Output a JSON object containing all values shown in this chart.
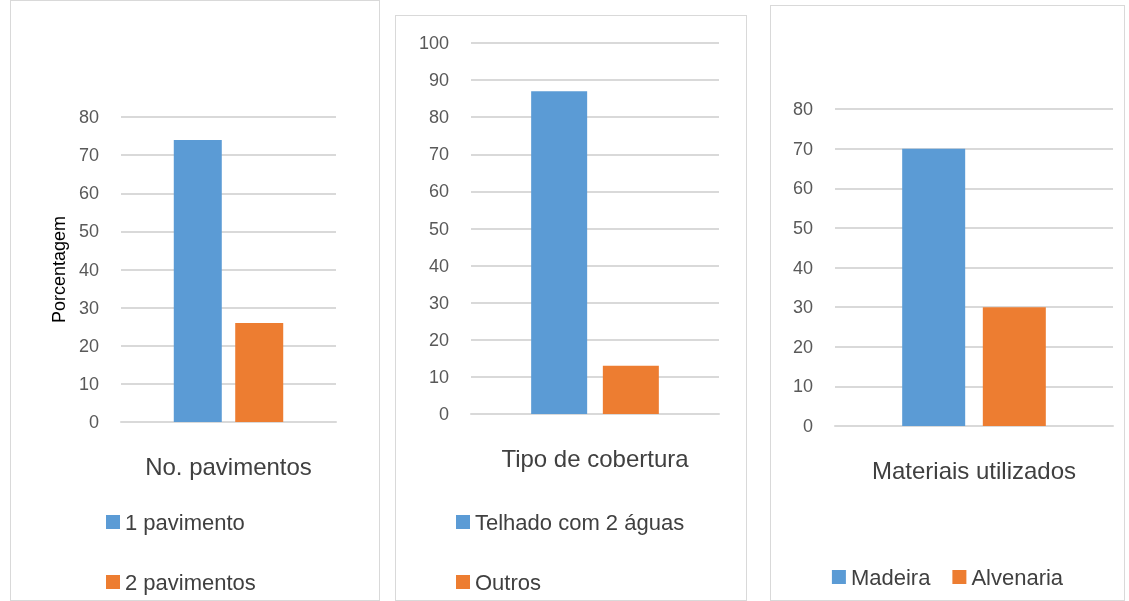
{
  "chart_data": [
    {
      "type": "bar",
      "ylabel": "Porcentagem",
      "categories": [
        "No. pavimentos"
      ],
      "ylim": [
        0,
        80
      ],
      "yticks": [
        0,
        10,
        20,
        30,
        40,
        50,
        60,
        70,
        80
      ],
      "grid": "y",
      "legend": "bottom",
      "series": [
        {
          "name": "1 pavimento",
          "color": "#5b9bd5",
          "values": [
            74
          ]
        },
        {
          "name": "2 pavimentos",
          "color": "#ed7d31",
          "values": [
            26
          ]
        }
      ]
    },
    {
      "type": "bar",
      "categories": [
        "Tipo de cobertura"
      ],
      "ylim": [
        0,
        100
      ],
      "yticks": [
        0,
        10,
        20,
        30,
        40,
        50,
        60,
        70,
        80,
        90,
        100
      ],
      "grid": "y",
      "legend": "bottom",
      "series": [
        {
          "name": "Telhado com 2 águas",
          "color": "#5b9bd5",
          "values": [
            87
          ]
        },
        {
          "name": "Outros",
          "color": "#ed7d31",
          "values": [
            13
          ]
        }
      ]
    },
    {
      "type": "bar",
      "categories": [
        "Materiais utilizados"
      ],
      "ylim": [
        0,
        80
      ],
      "yticks": [
        0,
        10,
        20,
        30,
        40,
        50,
        60,
        70,
        80
      ],
      "grid": "y",
      "legend": "bottom",
      "series": [
        {
          "name": "Madeira",
          "color": "#5b9bd5",
          "values": [
            70
          ]
        },
        {
          "name": "Alvenaria",
          "color": "#ed7d31",
          "values": [
            30
          ]
        }
      ]
    }
  ]
}
